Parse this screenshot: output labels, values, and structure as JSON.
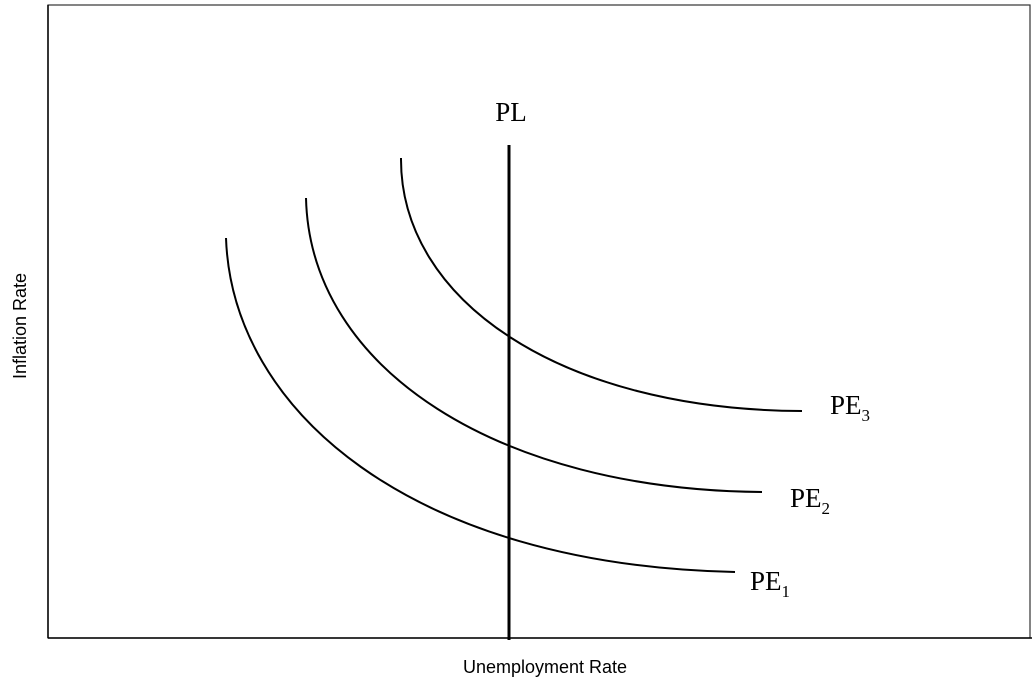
{
  "diagram": {
    "x_axis_label": "Unemployment Rate",
    "y_axis_label": "Inflation Rate",
    "vertical_line_label": "PL",
    "curves": [
      {
        "label": "PE",
        "subscript": "1"
      },
      {
        "label": "PE",
        "subscript": "2"
      },
      {
        "label": "PE",
        "subscript": "3"
      }
    ]
  }
}
